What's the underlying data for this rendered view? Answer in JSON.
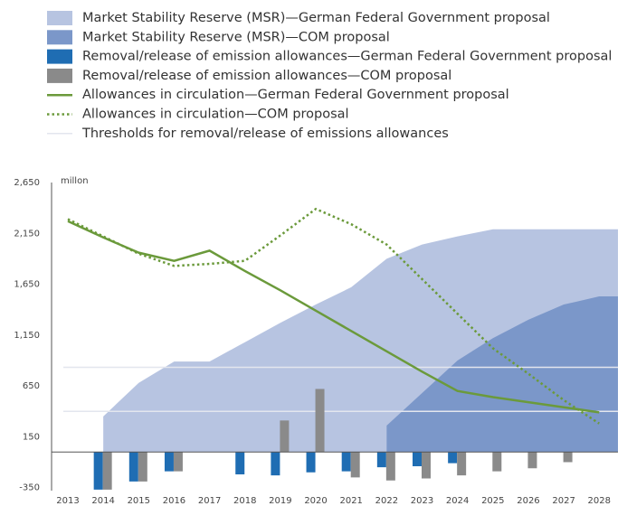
{
  "chart_data": {
    "type": "combo",
    "y_unit": "millon",
    "categories": [
      "2013",
      "2014",
      "2015",
      "2016",
      "2017",
      "2018",
      "2019",
      "2020",
      "2021",
      "2022",
      "2023",
      "2024",
      "2025",
      "2026",
      "2027",
      "2028"
    ],
    "ylim": [
      -380,
      2650
    ],
    "yticks": [
      {
        "value": 2650,
        "label": "2,650"
      },
      {
        "value": 2150,
        "label": "2,150"
      },
      {
        "value": 1650,
        "label": "1,650"
      },
      {
        "value": 1150,
        "label": "1,150"
      },
      650,
      150,
      -350
    ],
    "series": [
      {
        "name": "Market Stability Reserve (MSR)—German Federal Government proposal",
        "kind": "area",
        "color": "#b7c4e1",
        "values": [
          null,
          350,
          680,
          890,
          890,
          1080,
          1270,
          1450,
          1620,
          1900,
          2040,
          2120,
          2190,
          2190,
          2190,
          2190
        ]
      },
      {
        "name": "Market Stability Reserve (MSR)—COM proposal",
        "kind": "area",
        "color": "#7b97c9",
        "values": [
          null,
          null,
          null,
          null,
          null,
          null,
          null,
          null,
          null,
          260,
          580,
          900,
          1120,
          1300,
          1450,
          1530
        ]
      },
      {
        "name": "Removal/release of emission allowances—German Federal Government proposal",
        "kind": "bar",
        "color": "#1f6db3",
        "values": [
          null,
          -370,
          -290,
          -190,
          null,
          -220,
          -230,
          -200,
          -190,
          -150,
          -140,
          -110,
          null,
          null,
          null,
          null
        ]
      },
      {
        "name": "Removal/release of emission allowances—COM proposal",
        "kind": "bar",
        "color": "#8a8a8a",
        "values": [
          null,
          -370,
          -290,
          -190,
          null,
          null,
          310,
          620,
          -250,
          -280,
          -260,
          -230,
          -190,
          -160,
          -100,
          null
        ]
      },
      {
        "name": "Allowances in circulation—German Federal Government proposal",
        "kind": "line",
        "dashed": false,
        "color": "#6b9a3b",
        "values": [
          2270,
          2110,
          1960,
          1880,
          1980,
          1780,
          1590,
          1390,
          1190,
          990,
          790,
          600,
          540,
          490,
          440,
          390
        ]
      },
      {
        "name": "Allowances in circulation—COM proposal",
        "kind": "line",
        "dashed": true,
        "color": "#6b9a3b",
        "values": [
          2290,
          2120,
          1950,
          1830,
          1850,
          1880,
          2130,
          2390,
          2240,
          2040,
          1700,
          1360,
          1020,
          770,
          510,
          280
        ]
      }
    ],
    "thresholds": {
      "name": "Thresholds for removal/release of emissions allowances",
      "color": "#e3e6ee",
      "values": [
        833,
        400
      ]
    }
  }
}
